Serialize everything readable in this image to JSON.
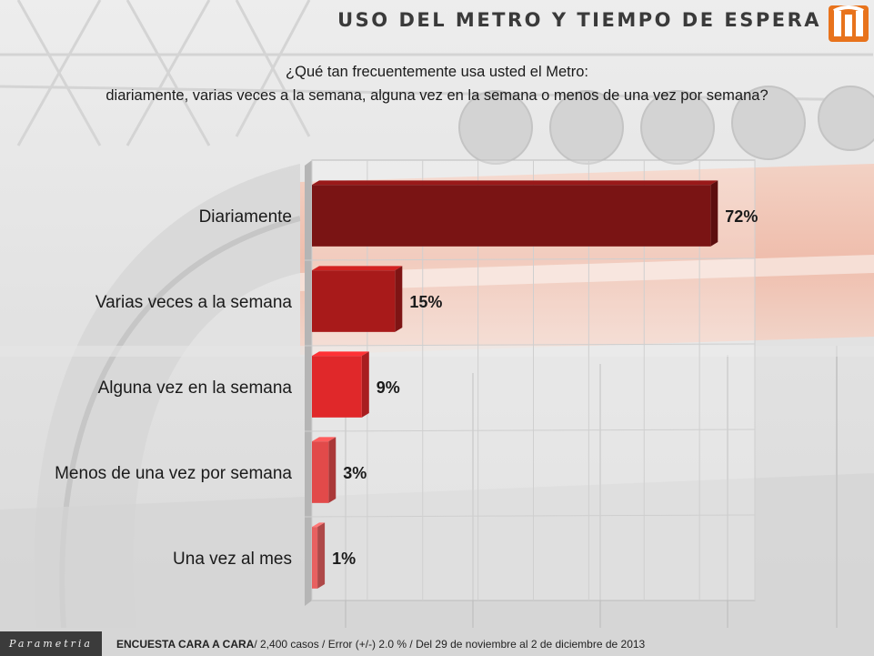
{
  "header": {
    "title": "USO DEL METRO Y TIEMPO DE ESPERA",
    "logo_icon": "metro-logo-icon",
    "logo_color": "#e8731c"
  },
  "question": {
    "line1": "¿Qué tan frecuentemente usa usted el Metro:",
    "line2": "diariamente, varias veces a la  semana, alguna vez en la semana o menos de una vez por semana?"
  },
  "chart_data": {
    "type": "bar",
    "orientation": "horizontal",
    "categories": [
      "Diariamente",
      "Varias veces a la semana",
      "Alguna vez en la semana",
      "Menos de una vez por semana",
      "Una vez al mes"
    ],
    "values": [
      72,
      15,
      9,
      3,
      1
    ],
    "value_labels": [
      "72%",
      "15%",
      "9%",
      "3%",
      "1%"
    ],
    "colors": [
      "#7a1414",
      "#a81a1a",
      "#e0282a",
      "#e24a4a",
      "#e86060"
    ],
    "xlim": [
      0,
      80
    ],
    "grid": true,
    "title": "",
    "xlabel": "",
    "ylabel": ""
  },
  "footer": {
    "brand": "Parametria",
    "note_bold": "ENCUESTA CARA A CARA",
    "note_rest": "/ 2,400 casos / Error (+/-) 2.0 % / Del 29 de noviembre al 2 de diciembre de 2013"
  }
}
